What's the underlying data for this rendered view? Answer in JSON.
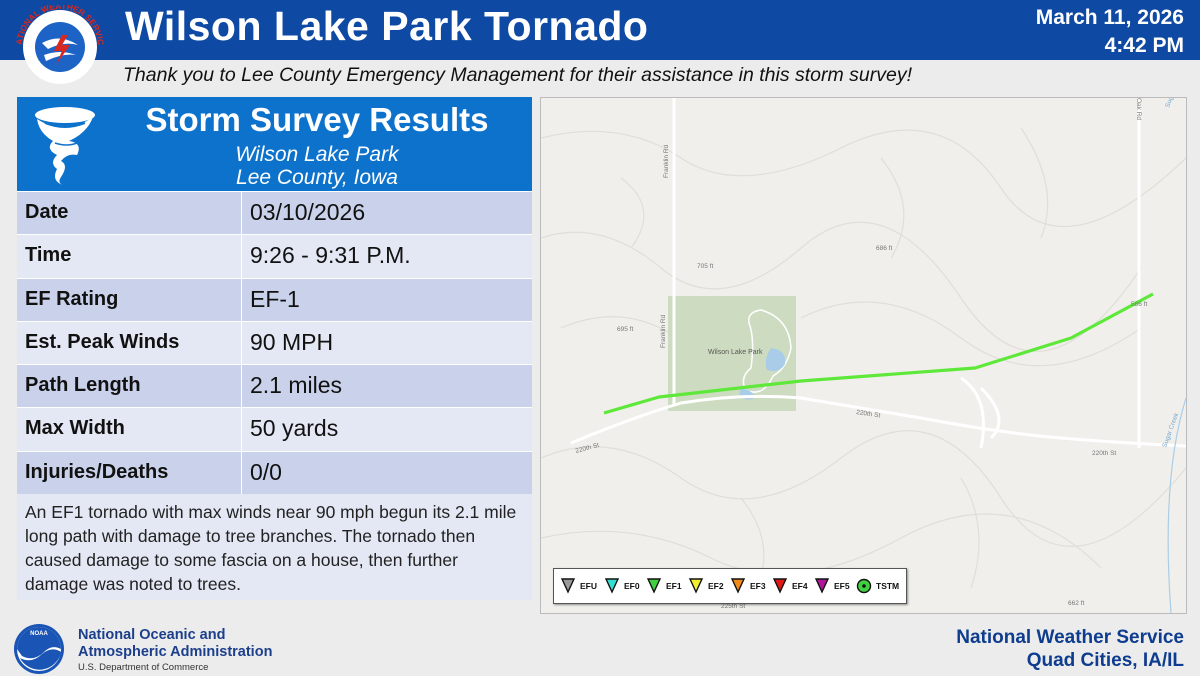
{
  "header": {
    "logo_text": "NATIONAL WEATHER SERVICE",
    "title": "Wilson Lake Park Tornado",
    "date": "March 11, 2026",
    "time": "4:42 PM",
    "thanks": "Thank you to Lee County Emergency Management for their assistance in this storm survey!"
  },
  "panel": {
    "icon": "tornado-icon",
    "title": "Storm Survey Results",
    "subtitle1": "Wilson Lake Park",
    "subtitle2": "Lee County, Iowa",
    "rows": [
      {
        "label": "Date",
        "value": "03/10/2026"
      },
      {
        "label": "Time",
        "value": "9:26 - 9:31 P.M."
      },
      {
        "label": "EF Rating",
        "value": "EF-1"
      },
      {
        "label": "Est. Peak Winds",
        "value": "90 MPH"
      },
      {
        "label": "Path Length",
        "value": "2.1 miles"
      },
      {
        "label": "Max Width",
        "value": "50 yards"
      },
      {
        "label": "Injuries/Deaths",
        "value": "0/0"
      }
    ],
    "summary": "An EF1 tornado with max winds near 90 mph begun its 2.1 mile long path with damage to tree branches. The tornado then caused damage to some fascia on a house, then further damage was noted to trees."
  },
  "map": {
    "labels": {
      "park": "Wilson Lake Park",
      "franklin_rd_1": "Franklin Rd",
      "franklin_rd_2": "Franklin Rd",
      "road_220_1": "220th St",
      "road_220_2": "220th St",
      "road_220_3": "220th St",
      "sugar_creek_1": "Sugar Creek",
      "sugar_creek_2": "Sugar Creek",
      "elev_705": "705 ft",
      "elev_686": "686 ft",
      "elev_695": "695 ft",
      "elev_662": "662 ft",
      "elev_586": "586 ft",
      "road_top_right": "Oak Rd",
      "road_bottom": "225th St"
    },
    "colors": {
      "track": "#5ee83a",
      "park": "#cddcc0",
      "lake": "#a9cde8",
      "terrain": "#f0efeb"
    },
    "legend": [
      {
        "label": "EFU",
        "color": "#9a9a9a"
      },
      {
        "label": "EF0",
        "color": "#33e0d0"
      },
      {
        "label": "EF1",
        "color": "#40d040"
      },
      {
        "label": "EF2",
        "color": "#f3ef2a"
      },
      {
        "label": "EF3",
        "color": "#f08a1a"
      },
      {
        "label": "EF4",
        "color": "#e01818"
      },
      {
        "label": "EF5",
        "color": "#b0169a"
      },
      {
        "label": "TSTM",
        "color": "#40d040"
      }
    ]
  },
  "footer": {
    "noaa_logo_text": "NOAA",
    "noaa_name1": "National Oceanic and",
    "noaa_name2": "Atmospheric Administration",
    "noaa_dept": "U.S. Department of Commerce",
    "nws1": "National Weather Service",
    "nws2": "Quad Cities, IA/IL"
  }
}
